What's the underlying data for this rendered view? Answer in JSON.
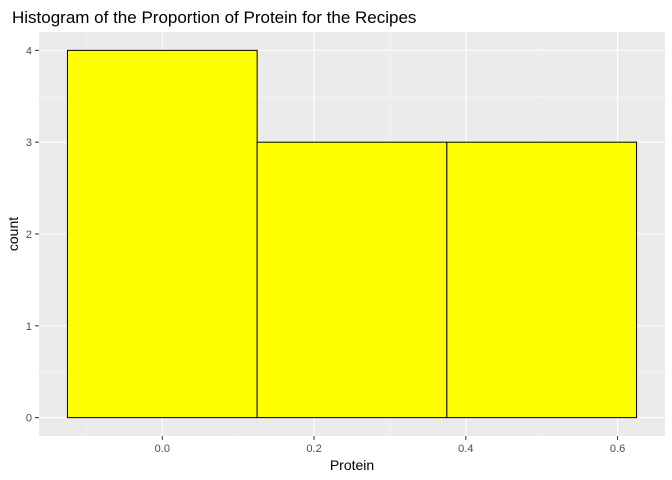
{
  "chart_data": {
    "type": "bar",
    "title": "Histogram of the Proportion of Protein for the Recipes",
    "xlabel": "Protein",
    "ylabel": "count",
    "bins": [
      {
        "x_start": -0.125,
        "x_end": 0.125,
        "count": 4
      },
      {
        "x_start": 0.125,
        "x_end": 0.375,
        "count": 3
      },
      {
        "x_start": 0.375,
        "x_end": 0.625,
        "count": 3
      }
    ],
    "xlim": [
      -0.1625,
      0.6625
    ],
    "ylim": [
      -0.2,
      4.2
    ],
    "x_ticks": [
      {
        "value": 0.0,
        "label": "0.0"
      },
      {
        "value": 0.2,
        "label": "0.2"
      },
      {
        "value": 0.4,
        "label": "0.4"
      },
      {
        "value": 0.6,
        "label": "0.6"
      }
    ],
    "y_ticks": [
      {
        "value": 0,
        "label": "0"
      },
      {
        "value": 1,
        "label": "1"
      },
      {
        "value": 2,
        "label": "2"
      },
      {
        "value": 3,
        "label": "3"
      },
      {
        "value": 4,
        "label": "4"
      }
    ],
    "x_minor_ticks": [
      -0.1,
      0.1,
      0.3,
      0.5
    ],
    "y_minor_ticks": [
      0.5,
      1.5,
      2.5,
      3.5
    ],
    "grid": true,
    "colors": {
      "bar_fill": "#FFFF00",
      "bar_stroke": "#000000",
      "panel_background": "#EBEBEB",
      "grid_major": "#FFFFFF",
      "grid_minor": "#F5F5F5",
      "tick_mark": "#333333"
    }
  }
}
